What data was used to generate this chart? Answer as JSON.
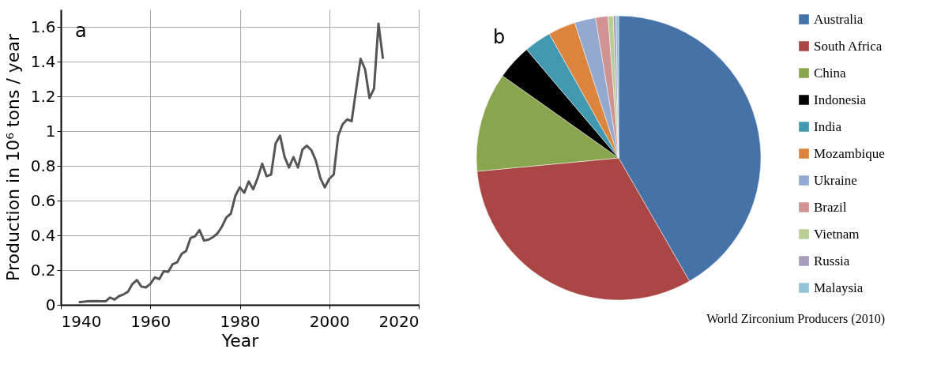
{
  "chart_data": [
    {
      "type": "line",
      "xlabel": "Year",
      "ylabel": "Production in 10⁶ tons / year",
      "annotations": [
        "a"
      ],
      "xlim": [
        1940,
        2020
      ],
      "xticks": [
        1940,
        1960,
        1980,
        2000,
        2020
      ],
      "ylim": [
        0,
        1.7
      ],
      "yticks": [
        0,
        0.2,
        0.4,
        0.6,
        0.8,
        1,
        1.2,
        1.4,
        1.6
      ],
      "grid": true,
      "series": [
        {
          "color": "#555555",
          "x": [
            1944,
            1946,
            1948,
            1949,
            1950,
            1951,
            1952,
            1953,
            1954,
            1955,
            1956,
            1957,
            1958,
            1959,
            1960,
            1961,
            1962,
            1963,
            1964,
            1965,
            1966,
            1967,
            1968,
            1969,
            1970,
            1971,
            1972,
            1973,
            1974,
            1975,
            1976,
            1977,
            1978,
            1979,
            1980,
            1981,
            1982,
            1983,
            1984,
            1985,
            1986,
            1987,
            1988,
            1989,
            1990,
            1991,
            1992,
            1993,
            1994,
            1995,
            1996,
            1997,
            1998,
            1999,
            2000,
            2001,
            2002,
            2003,
            2004,
            2005,
            2006,
            2007,
            2008,
            2009,
            2010,
            2011,
            2012
          ],
          "values": [
            0.015,
            0.02,
            0.022,
            0.02,
            0.02,
            0.042,
            0.03,
            0.05,
            0.06,
            0.075,
            0.12,
            0.143,
            0.105,
            0.1,
            0.12,
            0.158,
            0.148,
            0.193,
            0.19,
            0.234,
            0.245,
            0.293,
            0.31,
            0.385,
            0.395,
            0.43,
            0.37,
            0.375,
            0.39,
            0.41,
            0.45,
            0.503,
            0.525,
            0.627,
            0.676,
            0.645,
            0.71,
            0.665,
            0.73,
            0.812,
            0.74,
            0.75,
            0.928,
            0.974,
            0.853,
            0.79,
            0.85,
            0.79,
            0.894,
            0.916,
            0.89,
            0.83,
            0.73,
            0.676,
            0.725,
            0.75,
            0.974,
            1.04,
            1.067,
            1.057,
            1.238,
            1.416,
            1.356,
            1.19,
            1.245,
            1.618,
            1.416
          ]
        }
      ]
    },
    {
      "type": "pie",
      "title": "World Zirconium Producers (2010)",
      "annotations": [
        "b"
      ],
      "legend": "right",
      "categories": [
        "Australia",
        "South Africa",
        "China",
        "Indonesia",
        "India",
        "Mozambique",
        "Ukraine",
        "Brazil",
        "Vietnam",
        "Russia",
        "Malaysia"
      ],
      "values": [
        41.7,
        31.8,
        11.3,
        4.0,
        3.1,
        3.1,
        2.4,
        1.4,
        0.6,
        0.3,
        0.3
      ],
      "colors": [
        "#4572a7",
        "#aa4643",
        "#89a54e",
        "#000000",
        "#4198af",
        "#db843d",
        "#93a9cf",
        "#d19392",
        "#b9cd96",
        "#a99bbd",
        "#92c4d6"
      ]
    }
  ]
}
